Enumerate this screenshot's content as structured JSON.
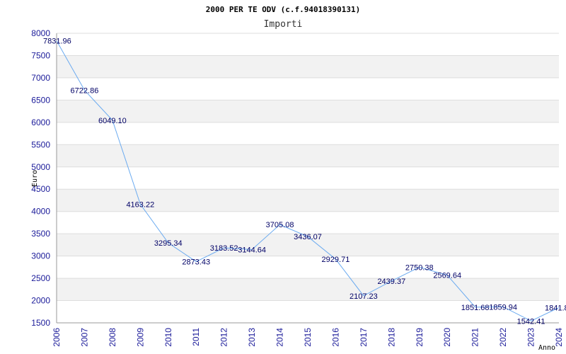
{
  "chart_data": {
    "type": "line",
    "title": "2000 PER TE ODV (c.f.94018390131)",
    "subtitle": "Importi",
    "xlabel": "Anno",
    "ylabel": "Euro",
    "ylim": [
      1500,
      8000
    ],
    "ystep": 500,
    "grid": true,
    "x": [
      "2006",
      "2007",
      "2008",
      "2009",
      "2010",
      "2011",
      "2012",
      "2013",
      "2014",
      "2015",
      "2016",
      "2017",
      "2018",
      "2019",
      "2020",
      "2021",
      "2022",
      "2023",
      "2024"
    ],
    "values": [
      7831.96,
      6722.86,
      6049.1,
      4163.22,
      3295.34,
      2873.43,
      3183.52,
      3144.64,
      3705.08,
      3436.07,
      2929.71,
      2107.23,
      2439.37,
      2750.38,
      2569.64,
      1851.68,
      1859.94,
      1542.41,
      1841.8
    ],
    "labels": [
      "7831.96",
      "6722.86",
      "6049.10",
      "4163.22",
      "3295.34",
      "2873.43",
      "3183.52",
      "3144.64",
      "3705.08",
      "3436.07",
      "2929.71",
      "2107.23",
      "2439.37",
      "2750.38",
      "2569.64",
      "1851.68",
      "1859.94",
      "1542.41",
      "1841.8"
    ],
    "colors": {
      "line": "#6aaaf0",
      "band": "#f2f2f2",
      "grid": "#dddddd",
      "tick": "#1a1a99",
      "label": "#000066"
    }
  }
}
